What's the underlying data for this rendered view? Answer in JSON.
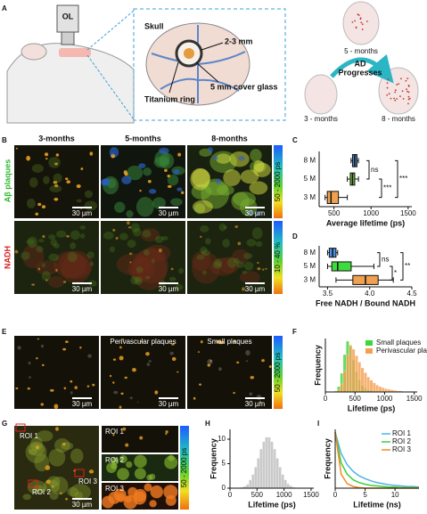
{
  "figure": {
    "panels": [
      "A",
      "B",
      "C",
      "D",
      "E",
      "F",
      "G",
      "H",
      "I"
    ],
    "a": {
      "objective": "OL",
      "skull": "Skull",
      "depth": "2-3 mm",
      "ring": "Titanium ring",
      "glass": "5 mm cover glass",
      "ages": [
        "5 - months",
        "3 - months",
        "8 - months"
      ],
      "arrow": [
        "AD",
        "Progresses"
      ]
    },
    "b": {
      "columns": [
        "3-months",
        "5-months",
        "8-months"
      ],
      "rows": [
        "Aβ plaques",
        "NADH"
      ],
      "colorbars": [
        "50 - 2000 ps",
        "10 - 40 %"
      ]
    },
    "scale_bar": "30 µm",
    "e": {
      "labels": [
        "Perivascular plaques",
        "Small plaques"
      ],
      "colorbar": "50 - 2000 ps"
    },
    "g": {
      "rois": [
        "ROI 1",
        "ROI 2",
        "ROI 3"
      ],
      "colorbar": "50 - 2000 ps"
    }
  },
  "chart_data": [
    {
      "type": "box",
      "xlabel": "Average lifetime (ps)",
      "categories": [
        "8 M",
        "5 M",
        "3 M"
      ],
      "boxes": [
        {
          "min": 730,
          "q1": 750,
          "median": 780,
          "q3": 810,
          "max": 830
        },
        {
          "min": 680,
          "q1": 720,
          "median": 750,
          "q3": 780,
          "max": 830
        },
        {
          "min": 380,
          "q1": 410,
          "median": 460,
          "q3": 560,
          "max": 680
        }
      ],
      "colors": [
        "#4a7fc1",
        "#6bbf3a",
        "#f0a050"
      ],
      "xlim": [
        300,
        1550
      ],
      "xticks": [
        500,
        1000,
        1500
      ],
      "annotations": [
        "ns",
        "***",
        "***"
      ]
    },
    {
      "type": "box",
      "xlabel": "Free NADH / Bound NADH",
      "categories": [
        "8 M",
        "5 M",
        "3 M"
      ],
      "boxes": [
        {
          "min": 3.5,
          "q1": 3.52,
          "median": 3.56,
          "q3": 3.6,
          "max": 3.62
        },
        {
          "min": 3.5,
          "q1": 3.55,
          "median": 3.62,
          "q3": 3.78,
          "max": 4.05
        },
        {
          "min": 3.6,
          "q1": 3.8,
          "median": 3.95,
          "q3": 4.1,
          "max": 4.28
        }
      ],
      "colors": [
        "#4f8fe0",
        "#3ddc3d",
        "#f0a050"
      ],
      "xlim": [
        3.4,
        4.5
      ],
      "xticks": [
        3.5,
        {
          "value": 4,
          "label": "4.0"
        },
        4.5
      ],
      "annotations": [
        "ns",
        "*",
        "**"
      ]
    },
    {
      "type": "histogram",
      "xlabel": "Lifetime (ps)",
      "ylabel": "Frequency",
      "legend": "top-right",
      "bins": [
        0,
        50,
        100,
        150,
        200,
        250,
        300,
        350,
        400,
        450,
        500,
        550,
        600,
        650,
        700,
        750,
        800,
        850,
        900,
        950,
        1000,
        1050,
        1100,
        1150,
        1200,
        1250,
        1300,
        1350,
        1400,
        1450,
        1500
      ],
      "series": [
        {
          "name": "Small plaques",
          "color": "#3dd63d",
          "values": [
            0,
            0,
            0,
            2,
            10,
            35,
            70,
            95,
            85,
            60,
            38,
            22,
            12,
            7,
            4,
            2,
            1,
            1,
            0,
            0,
            0,
            0,
            0,
            0,
            0,
            0,
            0,
            0,
            0,
            0
          ]
        },
        {
          "name": "Perivascular plaques",
          "color": "#f5a050",
          "values": [
            0,
            0,
            0,
            1,
            4,
            15,
            40,
            70,
            88,
            80,
            68,
            56,
            45,
            36,
            28,
            22,
            17,
            13,
            10,
            8,
            6,
            5,
            4,
            3,
            2,
            2,
            1,
            1,
            1,
            0
          ]
        }
      ],
      "xlim": [
        0,
        1550
      ],
      "xticks": [
        0,
        500,
        1000,
        1500
      ],
      "ylim": [
        0,
        100
      ]
    },
    {
      "type": "histogram",
      "xlabel": "Lifetime (ps)",
      "ylabel": "Frequency",
      "bins": [
        0,
        50,
        100,
        150,
        200,
        250,
        300,
        350,
        400,
        450,
        500,
        550,
        600,
        650,
        700,
        750,
        800,
        850,
        900,
        950,
        1000,
        1050,
        1100,
        1150,
        1200,
        1250,
        1300,
        1350,
        1400,
        1450,
        1500
      ],
      "series": [
        {
          "color": "#bdbdbd",
          "values": [
            0,
            0,
            0,
            0.1,
            0.2,
            0.4,
            0.8,
            1.7,
            2.8,
            4.3,
            6.1,
            8.0,
            9.5,
            10.4,
            10.4,
            9.5,
            8.0,
            6.1,
            4.3,
            2.8,
            1.7,
            0.9,
            0.5,
            0.2,
            0.1,
            0,
            0,
            0,
            0,
            0
          ]
        }
      ],
      "xlim": [
        0,
        1550
      ],
      "xticks": [
        0,
        500,
        1000,
        1500
      ],
      "ylim": [
        0,
        12
      ],
      "yticks": [
        0,
        5,
        10
      ]
    },
    {
      "type": "line",
      "xlabel": "Lifetime (ns)",
      "ylabel": "Frequency",
      "legend": "top-right",
      "x": [
        0,
        1,
        2,
        3,
        4,
        5,
        6,
        7,
        8,
        9,
        10,
        11,
        12,
        13,
        14
      ],
      "series": [
        {
          "name": "ROI 1",
          "color": "#4fb3e8",
          "values": [
            1,
            0.62,
            0.42,
            0.3,
            0.22,
            0.17,
            0.13,
            0.1,
            0.08,
            0.06,
            0.05,
            0.04,
            0.03,
            0.03,
            0.02
          ]
        },
        {
          "name": "ROI 2",
          "color": "#3ccf3c",
          "values": [
            1,
            0.45,
            0.25,
            0.15,
            0.1,
            0.07,
            0.05,
            0.04,
            0.03,
            0.02,
            0.02,
            0.01,
            0.01,
            0.01,
            0.01
          ]
        },
        {
          "name": "ROI 3",
          "color": "#f08a20",
          "values": [
            1,
            0.25,
            0.08,
            0.03,
            0.01,
            0,
            0,
            0,
            0,
            0,
            0,
            0,
            0,
            0,
            0
          ]
        }
      ],
      "xlim": [
        0,
        14
      ],
      "xticks": [
        0,
        5,
        10
      ],
      "ylim": [
        0,
        1.05
      ]
    }
  ]
}
